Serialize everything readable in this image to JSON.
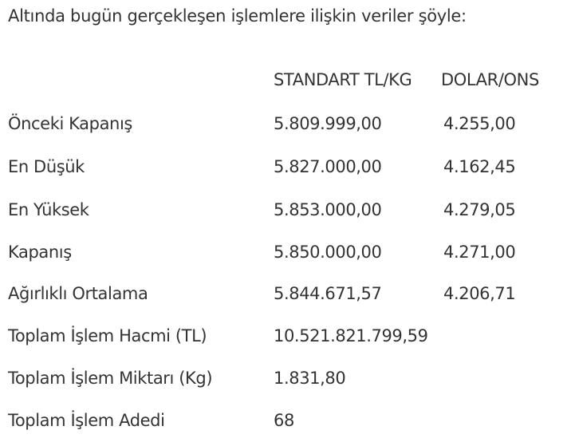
{
  "intro": "Altında bugün gerçekleşen işlemlere ilişkin veriler şöyle:",
  "table": {
    "headers": [
      "",
      "STANDART TL/KG",
      "DOLAR/ONS"
    ],
    "rows": [
      [
        "Önceki Kapanış",
        "5.809.999,00",
        "4.255,00"
      ],
      [
        "En Düşük",
        "5.827.000,00",
        "4.162,45"
      ],
      [
        "En Yüksek",
        "5.853.000,00",
        "4.279,05"
      ],
      [
        "Kapanış",
        "5.850.000,00",
        "4.271,00"
      ],
      [
        "Ağırlıklı Ortalama",
        "5.844.671,57",
        "4.206,71"
      ],
      [
        "Toplam İşlem Hacmi (TL)",
        "10.521.821.799,59",
        ""
      ],
      [
        "Toplam İşlem Miktarı (Kg)",
        "1.831,80",
        ""
      ],
      [
        "Toplam İşlem Adedi",
        "68",
        ""
      ]
    ]
  }
}
